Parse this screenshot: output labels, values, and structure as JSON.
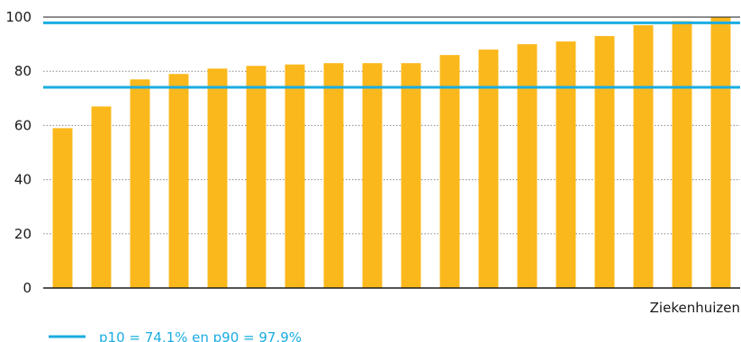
{
  "chart_data": {
    "type": "bar",
    "xlabel": "Ziekenhuizen",
    "ylabel": "",
    "ylim": [
      0,
      100
    ],
    "yticks": [
      0,
      20,
      40,
      60,
      80,
      100
    ],
    "grid": true,
    "values": [
      59,
      67,
      77,
      79,
      81,
      82,
      82.5,
      83,
      83,
      83,
      86,
      88,
      90,
      91,
      93,
      97,
      98.5,
      100
    ],
    "reference_lines": [
      {
        "name": "p10",
        "value": 74.1
      },
      {
        "name": "p90",
        "value": 97.9
      }
    ],
    "legend": {
      "position": "bottom-left",
      "text": "p10 = 74,1% en p90 = 97,9%"
    },
    "colors": {
      "bar": "#fbb81c",
      "reference_line": "#1aace2",
      "grid": "#888888",
      "axis": "#1a1a1a"
    }
  }
}
